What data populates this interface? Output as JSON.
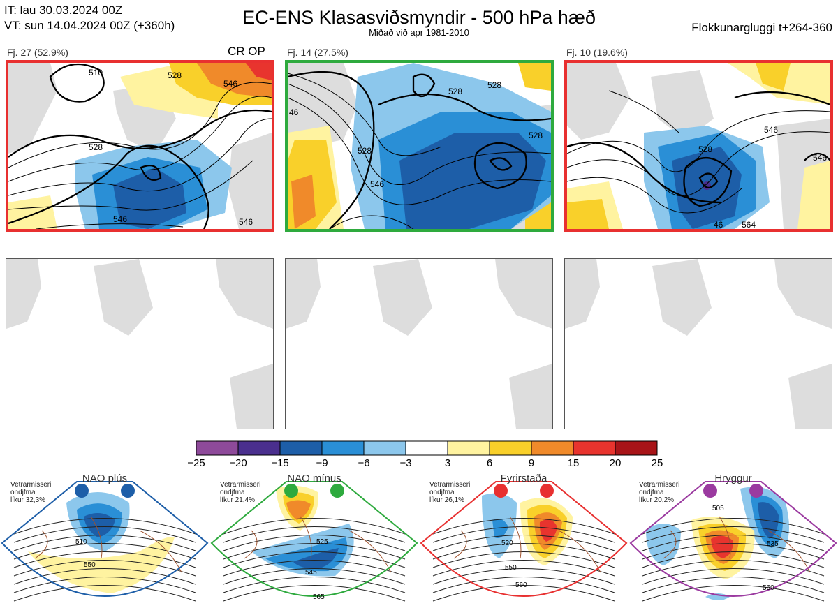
{
  "header": {
    "it_line": "IT: lau 30.03.2024 00Z",
    "vt_line": "VT: sun 14.04.2024 00Z  (+360h)",
    "title": "EC-ENS Klasasviðsmyndir - 500 hPa hæð",
    "subtitle": "Miðað við apr 1981-2010",
    "window": "Flokkunargluggi t+264-360"
  },
  "clusters": [
    {
      "label": "Fj. 27 (52.9%)",
      "border_color": "#e83030",
      "contour_labels": [
        "510",
        "528",
        "546",
        "528",
        "546",
        "546"
      ]
    },
    {
      "label": "Fj. 14 (27.5%)",
      "border_color": "#2eaa3e",
      "contour_labels": [
        "528",
        "528",
        "528",
        "546",
        "528",
        "46"
      ]
    },
    {
      "label": "Fj. 10 (19.6%)",
      "border_color": "#e83030",
      "contour_labels": [
        "528",
        "546",
        "546",
        "46",
        "564"
      ]
    }
  ],
  "crop_label": "CR OP",
  "colorbar": {
    "colors": [
      "#8e4a9a",
      "#4a2f8e",
      "#1d5ea8",
      "#2a8fd6",
      "#8cc7ec",
      "#ffffff",
      "#fff3a0",
      "#f9d02a",
      "#f08a2a",
      "#e8342e",
      "#a81418"
    ],
    "ticks": [
      "−25",
      "−20",
      "−15",
      "−9",
      "−6",
      "−3",
      "3",
      "6",
      "9",
      "15",
      "20",
      "25"
    ]
  },
  "regimes": [
    {
      "name": "NAO plús",
      "note": [
        "Vetrarmisseri",
        "ondjfma",
        "líkur 32,3%"
      ],
      "color": "#1d5ea8",
      "labels": [
        "510",
        "550"
      ]
    },
    {
      "name": "NAO mínus",
      "note": [
        "Vetrarmisseri",
        "ondjfma",
        "líkur 21,4%"
      ],
      "color": "#2eaa3e",
      "labels": [
        "525",
        "545",
        "565"
      ]
    },
    {
      "name": "Fyrirstaða",
      "note": [
        "Vetrarmisseri",
        "ondjfma",
        "líkur 26,1%"
      ],
      "color": "#e83030",
      "labels": [
        "520",
        "550",
        "560"
      ]
    },
    {
      "name": "Hryggur",
      "note": [
        "Vetrarmisseri",
        "ondjfma",
        "líkur 20,2%"
      ],
      "color": "#9b3aa0",
      "labels": [
        "505",
        "535",
        "560"
      ]
    }
  ]
}
